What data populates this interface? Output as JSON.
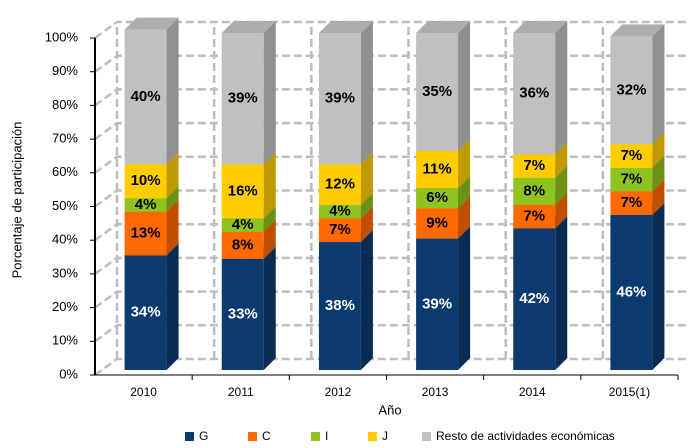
{
  "chart_data": {
    "type": "bar3d-stacked",
    "x_label": "Año",
    "y_label": "Porcentaje de participación",
    "categories": [
      "2010",
      "2011",
      "2012",
      "2013",
      "2014",
      "2015(1)"
    ],
    "series": [
      {
        "name": "G",
        "color": "#0b3a6e",
        "values": [
          34,
          33,
          38,
          39,
          42,
          46
        ],
        "value_labels": [
          "34%",
          "33%",
          "38%",
          "39%",
          "42%",
          "46%"
        ]
      },
      {
        "name": "C",
        "color": "#ff6a00",
        "values": [
          13,
          8,
          7,
          9,
          7,
          7
        ],
        "value_labels": [
          "13%",
          "8%",
          "7%",
          "9%",
          "7%",
          "7%"
        ]
      },
      {
        "name": "I",
        "color": "#8fc31f",
        "values": [
          4,
          4,
          4,
          6,
          8,
          7
        ],
        "value_labels": [
          "4%",
          "4%",
          "4%",
          "6%",
          "8%",
          "7%"
        ]
      },
      {
        "name": "J",
        "color": "#ffcc00",
        "values": [
          10,
          16,
          12,
          11,
          7,
          7
        ],
        "value_labels": [
          "10%",
          "16%",
          "12%",
          "11%",
          "7%",
          "7%"
        ]
      },
      {
        "name": "Resto de actividades económicas",
        "color": "#c0c0c0",
        "values": [
          40,
          39,
          39,
          35,
          36,
          32
        ],
        "value_labels": [
          "40%",
          "39%",
          "39%",
          "35%",
          "36%",
          "32%"
        ]
      }
    ],
    "ylim": [
      0,
      100
    ],
    "yticks": [
      {
        "value": 0,
        "label": "0%"
      },
      {
        "value": 10,
        "label": "10%"
      },
      {
        "value": 20,
        "label": "20%"
      },
      {
        "value": 30,
        "label": "30%"
      },
      {
        "value": 40,
        "label": "40%"
      },
      {
        "value": 50,
        "label": "50%"
      },
      {
        "value": 60,
        "label": "60%"
      },
      {
        "value": 70,
        "label": "70%"
      },
      {
        "value": 80,
        "label": "80%"
      },
      {
        "value": 90,
        "label": "90%"
      },
      {
        "value": 100,
        "label": "100%"
      }
    ],
    "grid": true
  }
}
